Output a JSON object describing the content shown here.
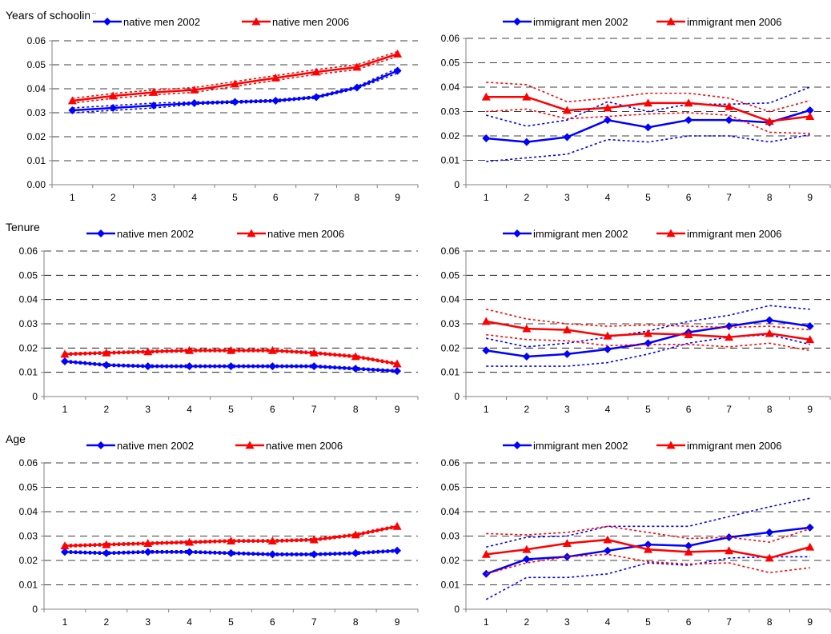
{
  "section_titles": [
    "Years of schooling",
    "Tenure",
    "Age"
  ],
  "colors": {
    "blue": "#0000ff",
    "red": "#ff0000",
    "grid": "#000000",
    "axis": "#808080"
  },
  "chart_data": [
    {
      "type": "line",
      "section": "Years of schooling",
      "x": [
        1,
        2,
        3,
        4,
        5,
        6,
        7,
        8,
        9
      ],
      "ylim": [
        0,
        0.06
      ],
      "yticks": [
        "0.00",
        "0.01",
        "0.02",
        "0.03",
        "0.04",
        "0.05",
        "0.06"
      ],
      "grid": true,
      "legend": "top",
      "series": [
        {
          "name": "native men 2002",
          "color": "#0000ff",
          "marker": "diamond",
          "values": [
            0.031,
            0.032,
            0.033,
            0.034,
            0.0345,
            0.035,
            0.0365,
            0.0405,
            0.0475
          ],
          "ci_low": [
            0.03,
            0.031,
            0.032,
            0.0335,
            0.034,
            0.0345,
            0.036,
            0.04,
            0.0465
          ],
          "ci_high": [
            0.032,
            0.033,
            0.034,
            0.0345,
            0.035,
            0.0355,
            0.037,
            0.041,
            0.0485
          ]
        },
        {
          "name": "native men 2006",
          "color": "#ff0000",
          "marker": "triangle",
          "values": [
            0.035,
            0.037,
            0.0385,
            0.0395,
            0.042,
            0.0445,
            0.047,
            0.049,
            0.0545
          ],
          "ci_low": [
            0.034,
            0.036,
            0.0375,
            0.0385,
            0.041,
            0.0435,
            0.046,
            0.048,
            0.0535
          ],
          "ci_high": [
            0.036,
            0.038,
            0.0395,
            0.0405,
            0.043,
            0.0455,
            0.048,
            0.05,
            0.0555
          ]
        }
      ]
    },
    {
      "type": "line",
      "section": "Years of schooling",
      "x": [
        1,
        2,
        3,
        4,
        5,
        6,
        7,
        8,
        9
      ],
      "ylim": [
        0,
        0.06
      ],
      "yticks": [
        "0",
        "0.01",
        "0.02",
        "0.03",
        "0.04",
        "0.05",
        "0.06"
      ],
      "grid": true,
      "legend": "top",
      "series": [
        {
          "name": "immigrant men 2002",
          "color": "#0000ff",
          "marker": "diamond",
          "values": [
            0.019,
            0.0175,
            0.0195,
            0.0265,
            0.0235,
            0.0265,
            0.0265,
            0.0255,
            0.0305
          ],
          "ci_low": [
            0.0095,
            0.011,
            0.0125,
            0.0185,
            0.0175,
            0.02,
            0.02,
            0.0175,
            0.0205
          ],
          "ci_high": [
            0.0285,
            0.024,
            0.0265,
            0.034,
            0.03,
            0.033,
            0.033,
            0.0335,
            0.04
          ]
        },
        {
          "name": "immigrant men 2006",
          "color": "#ff0000",
          "marker": "triangle",
          "values": [
            0.036,
            0.036,
            0.0305,
            0.0315,
            0.0335,
            0.0335,
            0.032,
            0.026,
            0.028
          ],
          "ci_low": [
            0.03,
            0.031,
            0.027,
            0.028,
            0.029,
            0.0295,
            0.0285,
            0.0215,
            0.021
          ],
          "ci_high": [
            0.042,
            0.041,
            0.034,
            0.0355,
            0.0375,
            0.0375,
            0.0355,
            0.03,
            0.0345
          ]
        }
      ]
    },
    {
      "type": "line",
      "section": "Tenure",
      "x": [
        1,
        2,
        3,
        4,
        5,
        6,
        7,
        8,
        9
      ],
      "ylim": [
        0,
        0.06
      ],
      "yticks": [
        "0",
        "0.01",
        "0.02",
        "0.03",
        "0.04",
        "0.05",
        "0.06"
      ],
      "grid": true,
      "legend": "top",
      "series": [
        {
          "name": "native men 2002",
          "color": "#0000ff",
          "marker": "diamond",
          "values": [
            0.0145,
            0.013,
            0.0125,
            0.0125,
            0.0125,
            0.0125,
            0.0125,
            0.0115,
            0.0105
          ],
          "ci_low": [
            0.014,
            0.0125,
            0.012,
            0.012,
            0.012,
            0.012,
            0.012,
            0.011,
            0.01
          ],
          "ci_high": [
            0.015,
            0.0135,
            0.013,
            0.013,
            0.013,
            0.013,
            0.013,
            0.012,
            0.011
          ]
        },
        {
          "name": "native men 2006",
          "color": "#ff0000",
          "marker": "triangle",
          "values": [
            0.0175,
            0.018,
            0.0185,
            0.019,
            0.019,
            0.019,
            0.018,
            0.0165,
            0.0135
          ],
          "ci_low": [
            0.017,
            0.0175,
            0.018,
            0.0185,
            0.0185,
            0.0185,
            0.0175,
            0.016,
            0.013
          ],
          "ci_high": [
            0.018,
            0.0185,
            0.019,
            0.0195,
            0.0195,
            0.0195,
            0.0185,
            0.017,
            0.014
          ]
        }
      ]
    },
    {
      "type": "line",
      "section": "Tenure",
      "x": [
        1,
        2,
        3,
        4,
        5,
        6,
        7,
        8,
        9
      ],
      "ylim": [
        0,
        0.06
      ],
      "yticks": [
        "0",
        "0.01",
        "0.02",
        "0.03",
        "0.04",
        "0.05",
        "0.06"
      ],
      "grid": true,
      "legend": "top",
      "series": [
        {
          "name": "immigrant men 2002",
          "color": "#0000ff",
          "marker": "diamond",
          "values": [
            0.019,
            0.0165,
            0.0175,
            0.0195,
            0.022,
            0.0265,
            0.029,
            0.0315,
            0.029
          ],
          "ci_low": [
            0.0125,
            0.0125,
            0.0125,
            0.014,
            0.0175,
            0.022,
            0.0245,
            0.0255,
            0.0215
          ],
          "ci_high": [
            0.024,
            0.0205,
            0.022,
            0.0245,
            0.027,
            0.031,
            0.0335,
            0.0375,
            0.036
          ]
        },
        {
          "name": "immigrant men 2006",
          "color": "#ff0000",
          "marker": "triangle",
          "values": [
            0.031,
            0.028,
            0.0275,
            0.025,
            0.026,
            0.0255,
            0.0245,
            0.026,
            0.0235
          ],
          "ci_low": [
            0.0255,
            0.0235,
            0.023,
            0.021,
            0.0215,
            0.0215,
            0.0205,
            0.022,
            0.019
          ],
          "ci_high": [
            0.036,
            0.032,
            0.03,
            0.029,
            0.0295,
            0.029,
            0.0285,
            0.029,
            0.0275
          ]
        }
      ]
    },
    {
      "type": "line",
      "section": "Age",
      "x": [
        1,
        2,
        3,
        4,
        5,
        6,
        7,
        8,
        9
      ],
      "ylim": [
        0,
        0.06
      ],
      "yticks": [
        "0",
        "0.01",
        "0.02",
        "0.03",
        "0.04",
        "0.05",
        "0.06"
      ],
      "grid": true,
      "legend": "top",
      "series": [
        {
          "name": "native men 2002",
          "color": "#0000ff",
          "marker": "diamond",
          "values": [
            0.0235,
            0.023,
            0.0235,
            0.0235,
            0.023,
            0.0225,
            0.0225,
            0.023,
            0.024
          ],
          "ci_low": [
            0.023,
            0.0225,
            0.023,
            0.023,
            0.0225,
            0.022,
            0.022,
            0.0225,
            0.0235
          ],
          "ci_high": [
            0.024,
            0.0235,
            0.024,
            0.024,
            0.0235,
            0.023,
            0.023,
            0.0235,
            0.0245
          ]
        },
        {
          "name": "native men 2006",
          "color": "#ff0000",
          "marker": "triangle",
          "values": [
            0.026,
            0.0265,
            0.027,
            0.0275,
            0.028,
            0.028,
            0.0285,
            0.0305,
            0.034
          ],
          "ci_low": [
            0.0255,
            0.026,
            0.0265,
            0.027,
            0.0275,
            0.0275,
            0.028,
            0.03,
            0.0335
          ],
          "ci_high": [
            0.0265,
            0.027,
            0.0275,
            0.028,
            0.0285,
            0.0285,
            0.029,
            0.031,
            0.0345
          ]
        }
      ]
    },
    {
      "type": "line",
      "section": "Age",
      "x": [
        1,
        2,
        3,
        4,
        5,
        6,
        7,
        8,
        9
      ],
      "ylim": [
        0,
        0.06
      ],
      "yticks": [
        "0",
        "0.01",
        "0.02",
        "0.03",
        "0.04",
        "0.05",
        "0.06"
      ],
      "grid": true,
      "legend": "top",
      "series": [
        {
          "name": "immigrant men 2002",
          "color": "#0000ff",
          "marker": "diamond",
          "values": [
            0.0145,
            0.0205,
            0.0215,
            0.024,
            0.0265,
            0.026,
            0.0295,
            0.0315,
            0.0335
          ],
          "ci_low": [
            0.004,
            0.013,
            0.013,
            0.0145,
            0.019,
            0.018,
            0.021,
            0.0215,
            0.0215
          ],
          "ci_high": [
            0.0255,
            0.0295,
            0.03,
            0.034,
            0.034,
            0.034,
            0.038,
            0.042,
            0.0455
          ]
        },
        {
          "name": "immigrant men 2006",
          "color": "#ff0000",
          "marker": "triangle",
          "values": [
            0.0225,
            0.0245,
            0.027,
            0.0285,
            0.0245,
            0.0235,
            0.024,
            0.021,
            0.0255
          ],
          "ci_low": [
            0.0145,
            0.019,
            0.0215,
            0.0225,
            0.0195,
            0.0185,
            0.019,
            0.015,
            0.017
          ],
          "ci_high": [
            0.031,
            0.0305,
            0.0315,
            0.034,
            0.0315,
            0.029,
            0.0295,
            0.0275,
            0.033
          ]
        }
      ]
    }
  ]
}
